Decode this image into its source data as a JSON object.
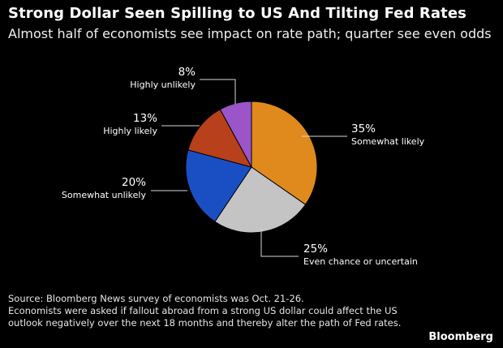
{
  "title": "Strong Dollar Seen Spilling to US And Tilting Fed Rates",
  "subtitle": "Almost half of economists see impact on rate path; quarter see even odds",
  "source": "Source: Bloomberg News survey of economists was Oct. 21-26.",
  "notes": "Economists were asked if fallout abroad from a strong US dollar could affect the US outlook negatively over the next 18 months and thereby alter the path of Fed rates.",
  "brand": "Bloomberg",
  "chart_data": {
    "type": "pie",
    "slices": [
      {
        "label": "Somewhat likely",
        "value": 35,
        "pct_label": "35%",
        "color": "#e08a1e"
      },
      {
        "label": "Even chance or uncertain",
        "value": 25,
        "pct_label": "25%",
        "color": "#c4c4c4"
      },
      {
        "label": "Somewhat unlikely",
        "value": 20,
        "pct_label": "20%",
        "color": "#1a4fc4"
      },
      {
        "label": "Highly likely",
        "value": 13,
        "pct_label": "13%",
        "color": "#b8401a"
      },
      {
        "label": "Highly unlikely",
        "value": 8,
        "pct_label": "8%",
        "color": "#9a55c9"
      }
    ]
  }
}
